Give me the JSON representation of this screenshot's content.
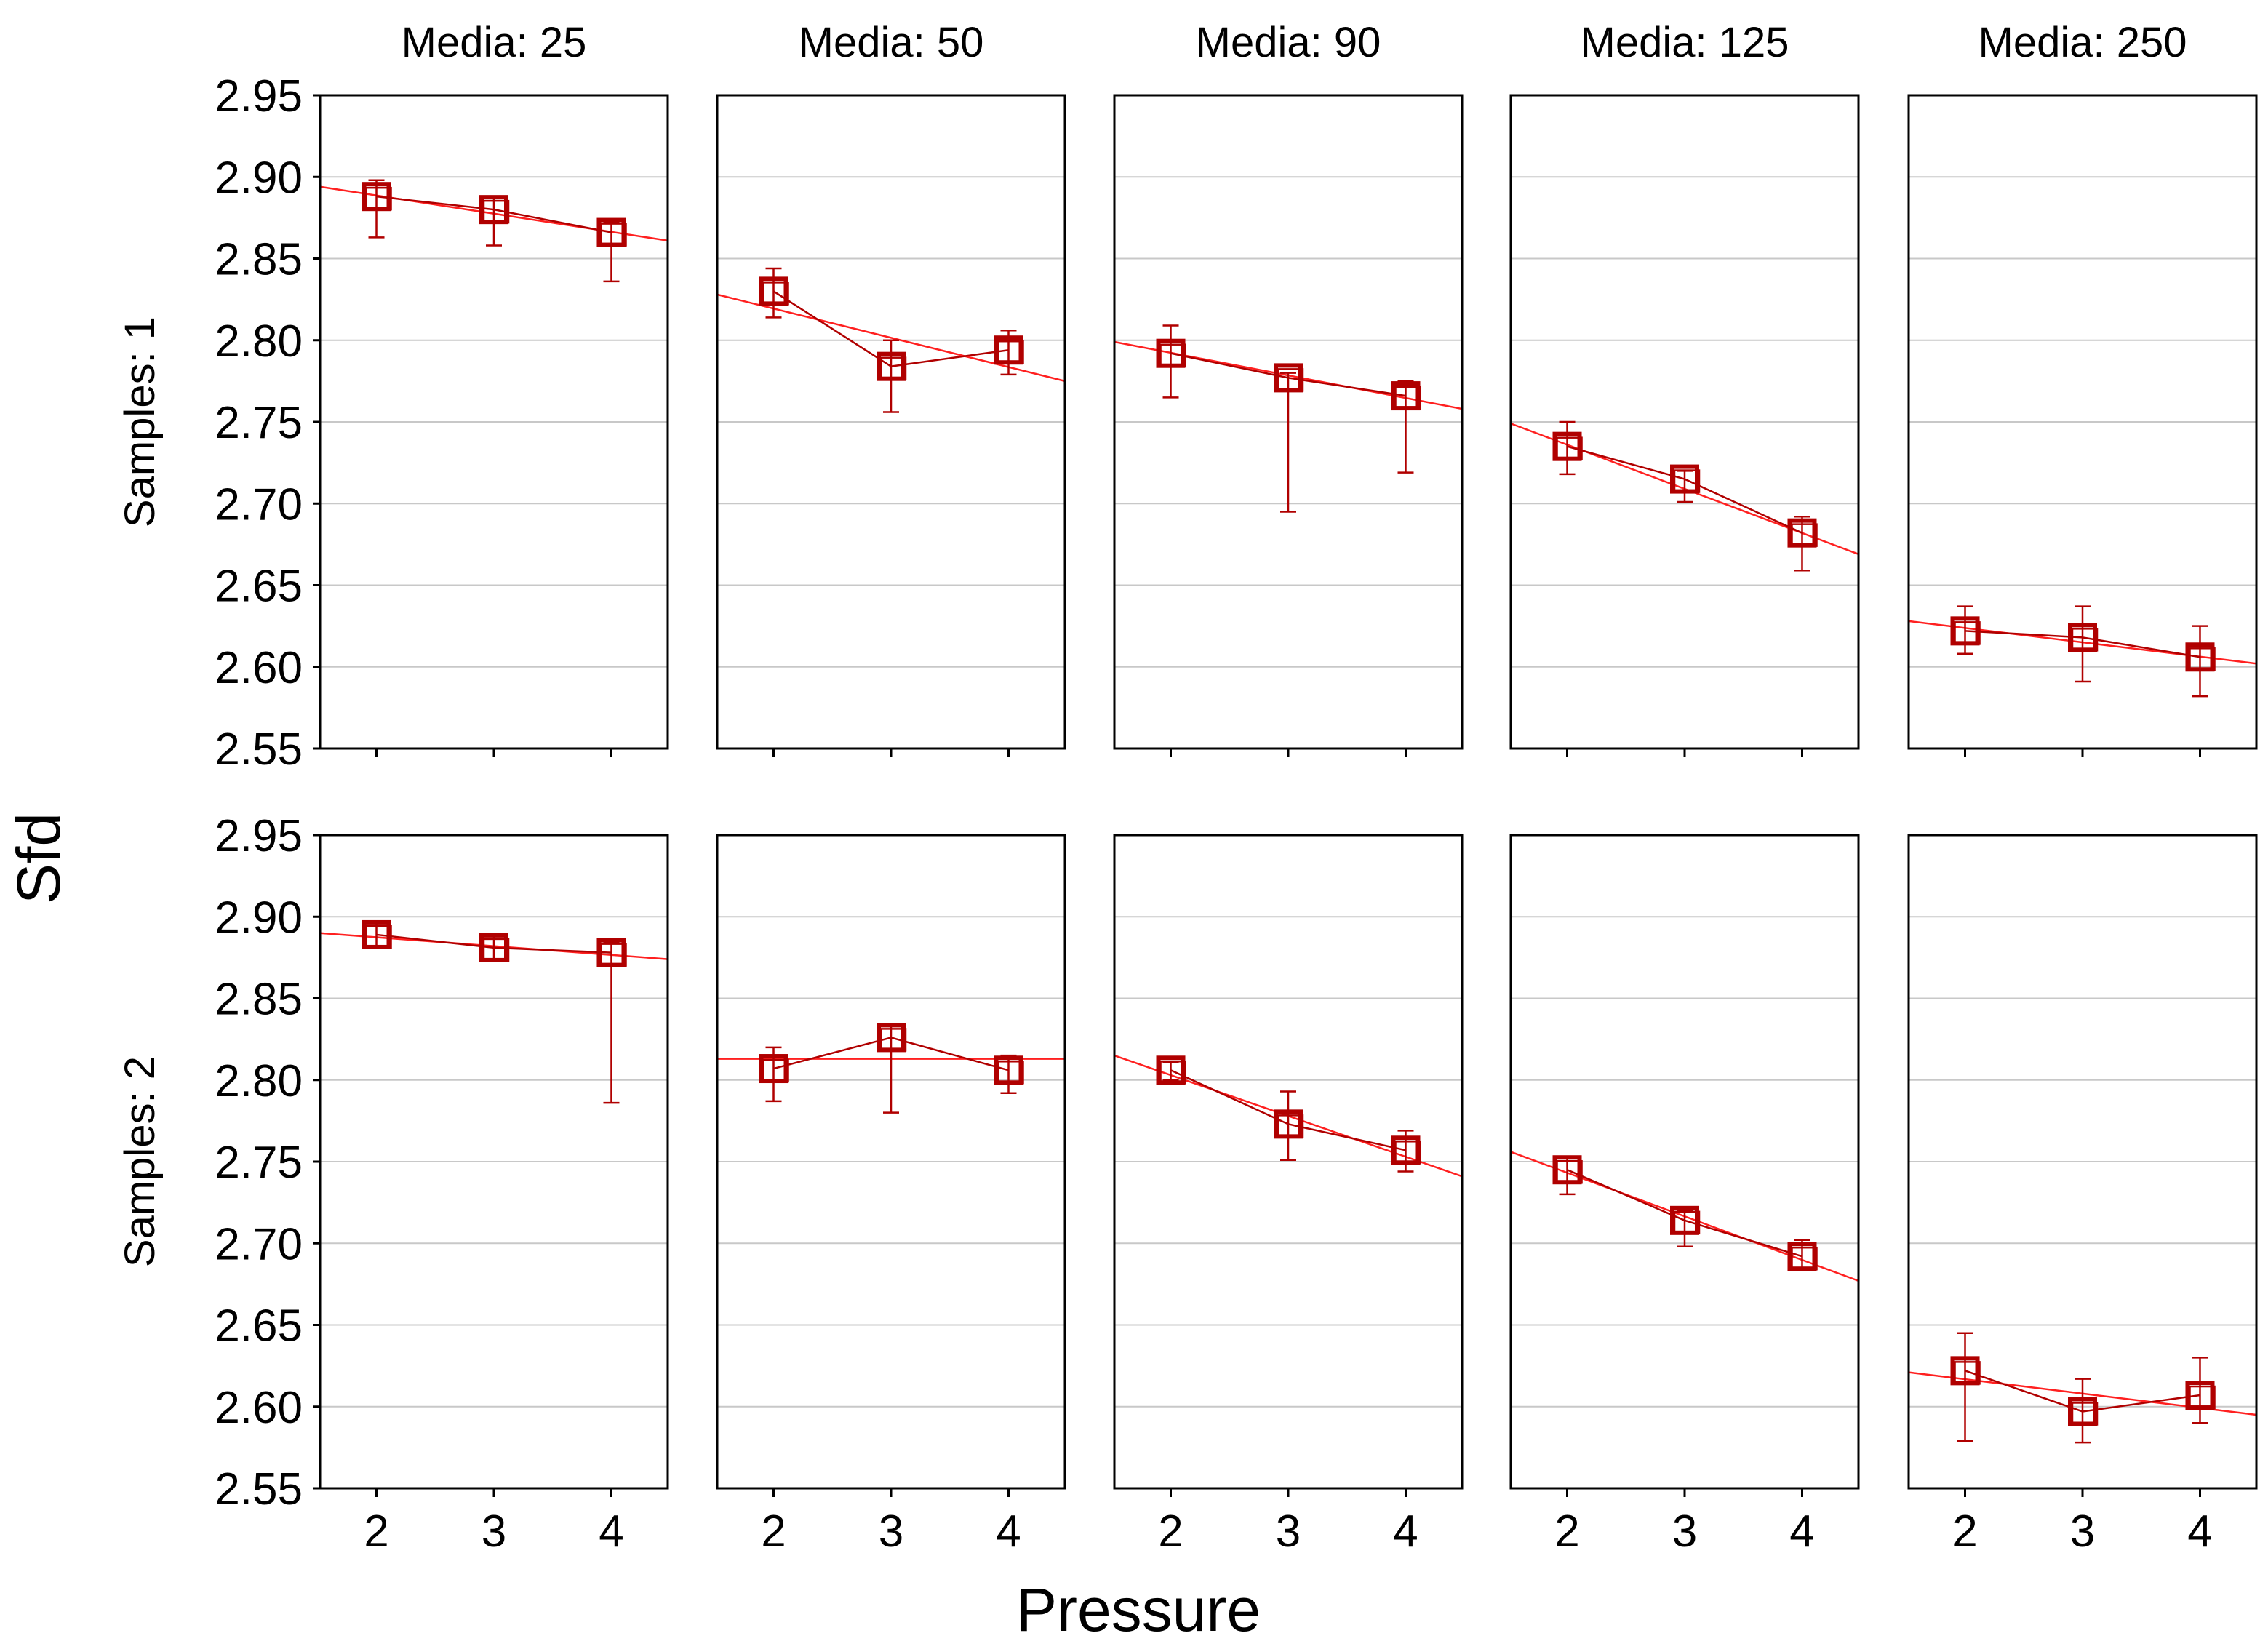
{
  "chart_data": {
    "type": "line",
    "subtype": "trellis means plot with whiskers and linear fit",
    "ylabel": "Sfd",
    "xlabel": "Pressure",
    "x_ticks": [
      "2",
      "3",
      "4"
    ],
    "x_values": [
      2,
      3,
      4
    ],
    "ylim": [
      2.55,
      2.95
    ],
    "y_ticks": [
      "2.55",
      "2.60",
      "2.65",
      "2.70",
      "2.75",
      "2.80",
      "2.85",
      "2.90",
      "2.95"
    ],
    "y_tick_values": [
      2.55,
      2.6,
      2.65,
      2.7,
      2.75,
      2.8,
      2.85,
      2.9,
      2.95
    ],
    "grid": true,
    "columns": [
      "Media: 25",
      "Media: 50",
      "Media: 90",
      "Media: 125",
      "Media: 250"
    ],
    "rows": [
      "Samples: 1",
      "Samples: 2"
    ],
    "colors": {
      "data": "#b00000",
      "fit": "#ff2020",
      "grid": "#c8c8c8",
      "frame": "#000000"
    },
    "panels": [
      [
        {
          "media": "Media: 25",
          "means": [
            2.888,
            2.88,
            2.866
          ],
          "low": [
            2.863,
            2.858,
            2.836
          ],
          "high": [
            2.898,
            2.888,
            2.872
          ],
          "fit_at_edges": [
            2.894,
            2.861
          ]
        },
        {
          "media": "Media: 50",
          "means": [
            2.83,
            2.784,
            2.794
          ],
          "low": [
            2.814,
            2.756,
            2.779
          ],
          "high": [
            2.844,
            2.8,
            2.806
          ],
          "fit_at_edges": [
            2.828,
            2.775
          ]
        },
        {
          "media": "Media: 90",
          "means": [
            2.792,
            2.777,
            2.766
          ],
          "low": [
            2.765,
            2.695,
            2.719
          ],
          "high": [
            2.809,
            2.78,
            2.775
          ],
          "fit_at_edges": [
            2.799,
            2.758
          ]
        },
        {
          "media": "Media: 125",
          "means": [
            2.735,
            2.715,
            2.682
          ],
          "low": [
            2.718,
            2.701,
            2.659
          ],
          "high": [
            2.75,
            2.72,
            2.692
          ],
          "fit_at_edges": [
            2.749,
            2.669
          ]
        },
        {
          "media": "Media: 250",
          "means": [
            2.622,
            2.618,
            2.606
          ],
          "low": [
            2.608,
            2.591,
            2.582
          ],
          "high": [
            2.637,
            2.637,
            2.625
          ],
          "fit_at_edges": [
            2.628,
            2.602
          ]
        }
      ],
      [
        {
          "media": "Media: 25",
          "means": [
            2.889,
            2.881,
            2.878
          ],
          "low": [
            2.882,
            2.873,
            2.786
          ],
          "high": [
            2.897,
            2.888,
            2.884
          ],
          "fit_at_edges": [
            2.89,
            2.874
          ]
        },
        {
          "media": "Media: 50",
          "means": [
            2.807,
            2.826,
            2.806
          ],
          "low": [
            2.787,
            2.78,
            2.792
          ],
          "high": [
            2.82,
            2.834,
            2.815
          ],
          "fit_at_edges": [
            2.813,
            2.813
          ]
        },
        {
          "media": "Media: 90",
          "means": [
            2.806,
            2.773,
            2.757
          ],
          "low": [
            2.8,
            2.751,
            2.744
          ],
          "high": [
            2.811,
            2.793,
            2.769
          ],
          "fit_at_edges": [
            2.815,
            2.741
          ]
        },
        {
          "media": "Media: 125",
          "means": [
            2.745,
            2.714,
            2.692
          ],
          "low": [
            2.73,
            2.698,
            2.684
          ],
          "high": [
            2.753,
            2.72,
            2.702
          ],
          "fit_at_edges": [
            2.756,
            2.677
          ]
        },
        {
          "media": "Media: 250",
          "means": [
            2.622,
            2.597,
            2.607
          ],
          "low": [
            2.579,
            2.578,
            2.59
          ],
          "high": [
            2.645,
            2.617,
            2.63
          ],
          "fit_at_edges": [
            2.621,
            2.595
          ]
        }
      ]
    ]
  }
}
